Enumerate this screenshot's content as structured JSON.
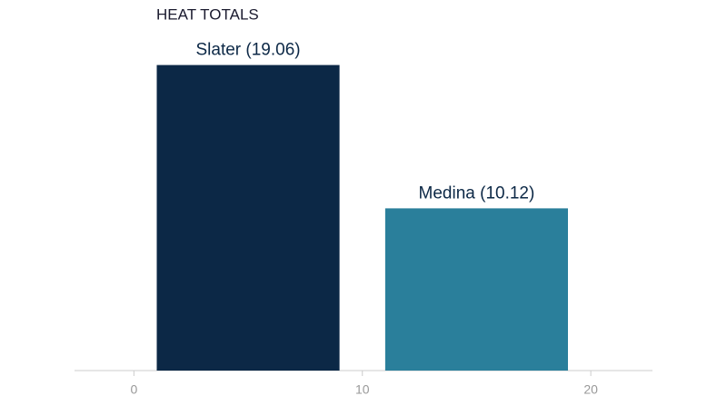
{
  "chart_data": {
    "type": "bar",
    "title": "HEAT TOTALS",
    "categories": [
      "Slater",
      "Medina"
    ],
    "x": [
      5,
      15
    ],
    "values": [
      19.06,
      10.12
    ],
    "value_labels": [
      "Slater (19.06)",
      "Medina (10.12)"
    ],
    "colors": [
      "#0c2846",
      "#2a7f9b"
    ],
    "xlim": [
      -2.6,
      22.7
    ],
    "xticks": [
      0,
      10,
      20
    ],
    "ylim": [
      0,
      20
    ]
  }
}
